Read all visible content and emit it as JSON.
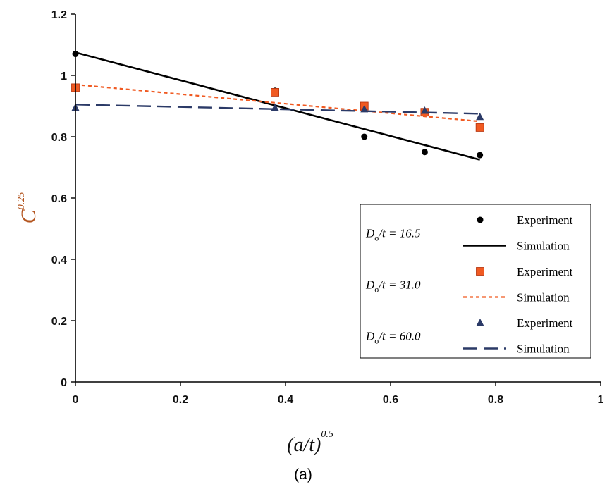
{
  "chart_data": {
    "type": "scatter",
    "caption": "(a)",
    "xlabel": {
      "base": "(a/t)",
      "exponent": "0.5"
    },
    "ylabel": {
      "base": "C",
      "exponent": "0.25"
    },
    "xlim": [
      0,
      1
    ],
    "ylim": [
      0,
      1.2
    ],
    "xticks": [
      "0",
      "0.2",
      "0.4",
      "0.6",
      "0.8",
      "1"
    ],
    "yticks": [
      "0",
      "0.2",
      "0.4",
      "0.6",
      "0.8",
      "1",
      "1.2"
    ],
    "xtick_values": [
      0,
      0.2,
      0.4,
      0.6,
      0.8,
      1
    ],
    "ytick_values": [
      0,
      0.2,
      0.4,
      0.6,
      0.8,
      1,
      1.2
    ],
    "grid": false,
    "legend_position": "bottom-right",
    "groups": [
      {
        "label": {
          "var": "D",
          "sub": "o",
          "rest": "/t = 16.5"
        },
        "color": "#000000",
        "marker": "circle",
        "line_style": "solid",
        "experiment_label": "Experiment",
        "simulation_label": "Simulation",
        "experiment": {
          "x": [
            0,
            0.38,
            0.55,
            0.665,
            0.77
          ],
          "y": [
            1.07,
            0.95,
            0.8,
            0.75,
            0.74
          ]
        },
        "simulation": {
          "x": [
            0,
            0.77
          ],
          "y": [
            1.075,
            0.725
          ]
        }
      },
      {
        "label": {
          "var": "D",
          "sub": "o",
          "rest": "/t = 31.0"
        },
        "color": "#f05a22",
        "marker": "square",
        "line_style": "dotted",
        "experiment_label": "Experiment",
        "simulation_label": "Simulation",
        "experiment": {
          "x": [
            0,
            0.38,
            0.55,
            0.665,
            0.77
          ],
          "y": [
            0.96,
            0.945,
            0.9,
            0.88,
            0.83
          ]
        },
        "simulation": {
          "x": [
            0,
            0.77
          ],
          "y": [
            0.97,
            0.85
          ]
        }
      },
      {
        "label": {
          "var": "D",
          "sub": "o",
          "rest": "/t = 60.0"
        },
        "color": "#2b3a67",
        "marker": "triangle",
        "line_style": "dashed",
        "experiment_label": "Experiment",
        "simulation_label": "Simulation",
        "experiment": {
          "x": [
            0,
            0.38,
            0.55,
            0.665,
            0.77
          ],
          "y": [
            0.895,
            0.895,
            0.89,
            0.885,
            0.865
          ]
        },
        "simulation": {
          "x": [
            0,
            0.77
          ],
          "y": [
            0.905,
            0.875
          ]
        }
      }
    ]
  }
}
